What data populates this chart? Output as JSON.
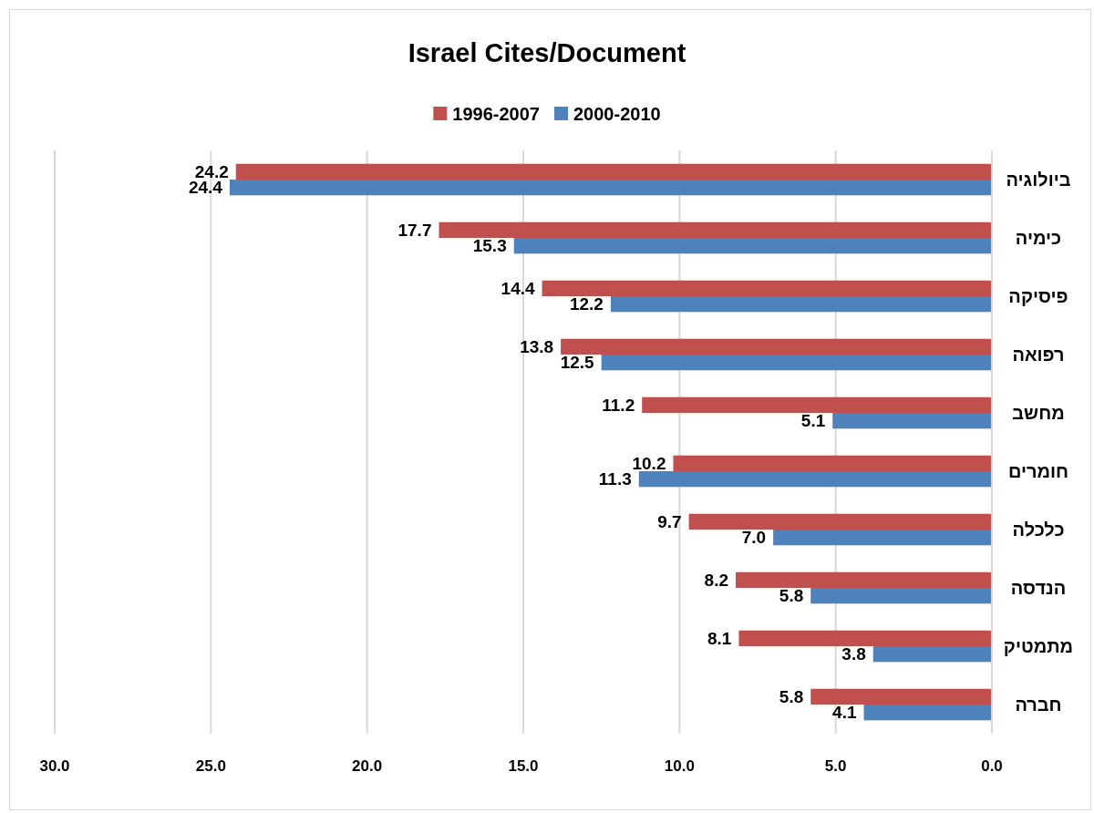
{
  "chart_data": {
    "type": "bar",
    "orientation": "horizontal",
    "title": "Israel Cites/Document",
    "categories": [
      "ביולוגיה",
      "כימיה",
      "פיסיקה",
      "רפואה",
      "מחשב",
      "חומרים",
      "כלכלה",
      "הנדסה",
      "מתמטיק",
      "חברה"
    ],
    "series": [
      {
        "name": "1996-2007",
        "color": "#c0504d",
        "values": [
          24.2,
          17.7,
          14.4,
          13.8,
          11.2,
          10.2,
          9.7,
          8.2,
          8.1,
          5.8
        ],
        "value_labels": [
          "24.2",
          "17.7",
          "14.4",
          "13.8",
          "11.2",
          "10.2",
          "9.7",
          "8.2",
          "8.1",
          "5.8"
        ]
      },
      {
        "name": "2000-2010",
        "color": "#4f81bd",
        "values": [
          24.4,
          15.3,
          12.2,
          12.5,
          5.1,
          11.3,
          7.0,
          5.8,
          3.8,
          4.1
        ],
        "value_labels": [
          "24.4",
          "15.3",
          "12.2",
          "12.5",
          "5.1",
          "11.3",
          "7.0",
          "5.8",
          "3.8",
          "4.1"
        ]
      }
    ],
    "xlim": [
      30,
      0
    ],
    "xticks": [
      {
        "value": 30,
        "label": "30.0"
      },
      {
        "value": 25,
        "label": "25.0"
      },
      {
        "value": 20,
        "label": "20.0"
      },
      {
        "value": 15,
        "label": "15.0"
      },
      {
        "value": 10,
        "label": "10.0"
      },
      {
        "value": 5,
        "label": "5.0"
      },
      {
        "value": 0,
        "label": "0.0"
      }
    ],
    "grid": "x",
    "legend": "top"
  }
}
